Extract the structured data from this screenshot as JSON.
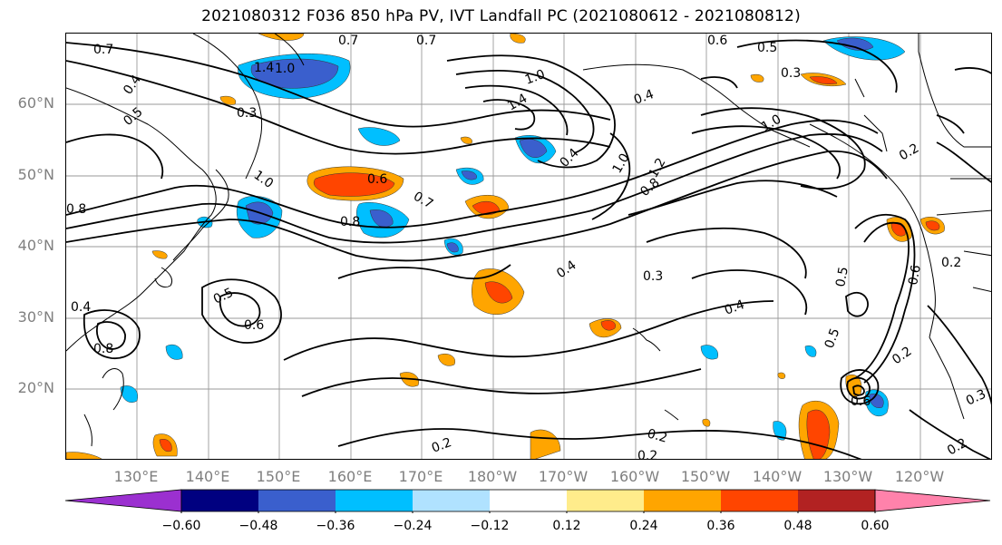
{
  "title": "2021080312 F036 850 hPa PV, IVT Landfall PC (2021080612 - 2021080812)",
  "lat_labels": [
    "60°N",
    "50°N",
    "40°N",
    "30°N",
    "20°N"
  ],
  "lon_labels": [
    "130°E",
    "140°E",
    "150°E",
    "160°E",
    "170°E",
    "180°W",
    "170°W",
    "160°W",
    "150°W",
    "140°W",
    "130°W",
    "120°W"
  ],
  "colorbar": {
    "labels": [
      "−0.60",
      "−0.48",
      "−0.36",
      "−0.24",
      "−0.12",
      "0.12",
      "0.24",
      "0.36",
      "0.48",
      "0.60"
    ],
    "colors": [
      "#9b30d0",
      "#000080",
      "#3a5fcd",
      "#00bfff",
      "#b0e2ff",
      "#ffffff",
      "#ffec8b",
      "#ffa500",
      "#ff4500",
      "#b22222",
      "#ff82ab"
    ]
  },
  "contour_labels": [
    "0.7",
    "1.4",
    "1.0",
    "0.7",
    "0.4",
    "0.5",
    "0.3",
    "0.7",
    "1.4",
    "1.0",
    "0.6",
    "0.5",
    "0.3",
    "0.4",
    "1.0",
    "0.2",
    "0.8",
    "1.0",
    "0.6",
    "0.8",
    "0.7",
    "0.4",
    "1.0",
    "1.2",
    "0.8",
    "0.3",
    "0.4",
    "0.5",
    "0.6",
    "0.4",
    "0.8",
    "0.5",
    "0.2",
    "0.2",
    "0.2",
    "0.2",
    "0.2",
    "0.2",
    "0.6",
    "0.5",
    "0.6",
    "0.4",
    "0.3"
  ],
  "fill_colors": {
    "neg_light": "#00bfff",
    "neg_mid": "#3a5fcd",
    "neg_dark": "#000080",
    "pos_light": "#ffec8b",
    "pos_mid": "#ffa500",
    "pos_strong": "#ff4500"
  }
}
